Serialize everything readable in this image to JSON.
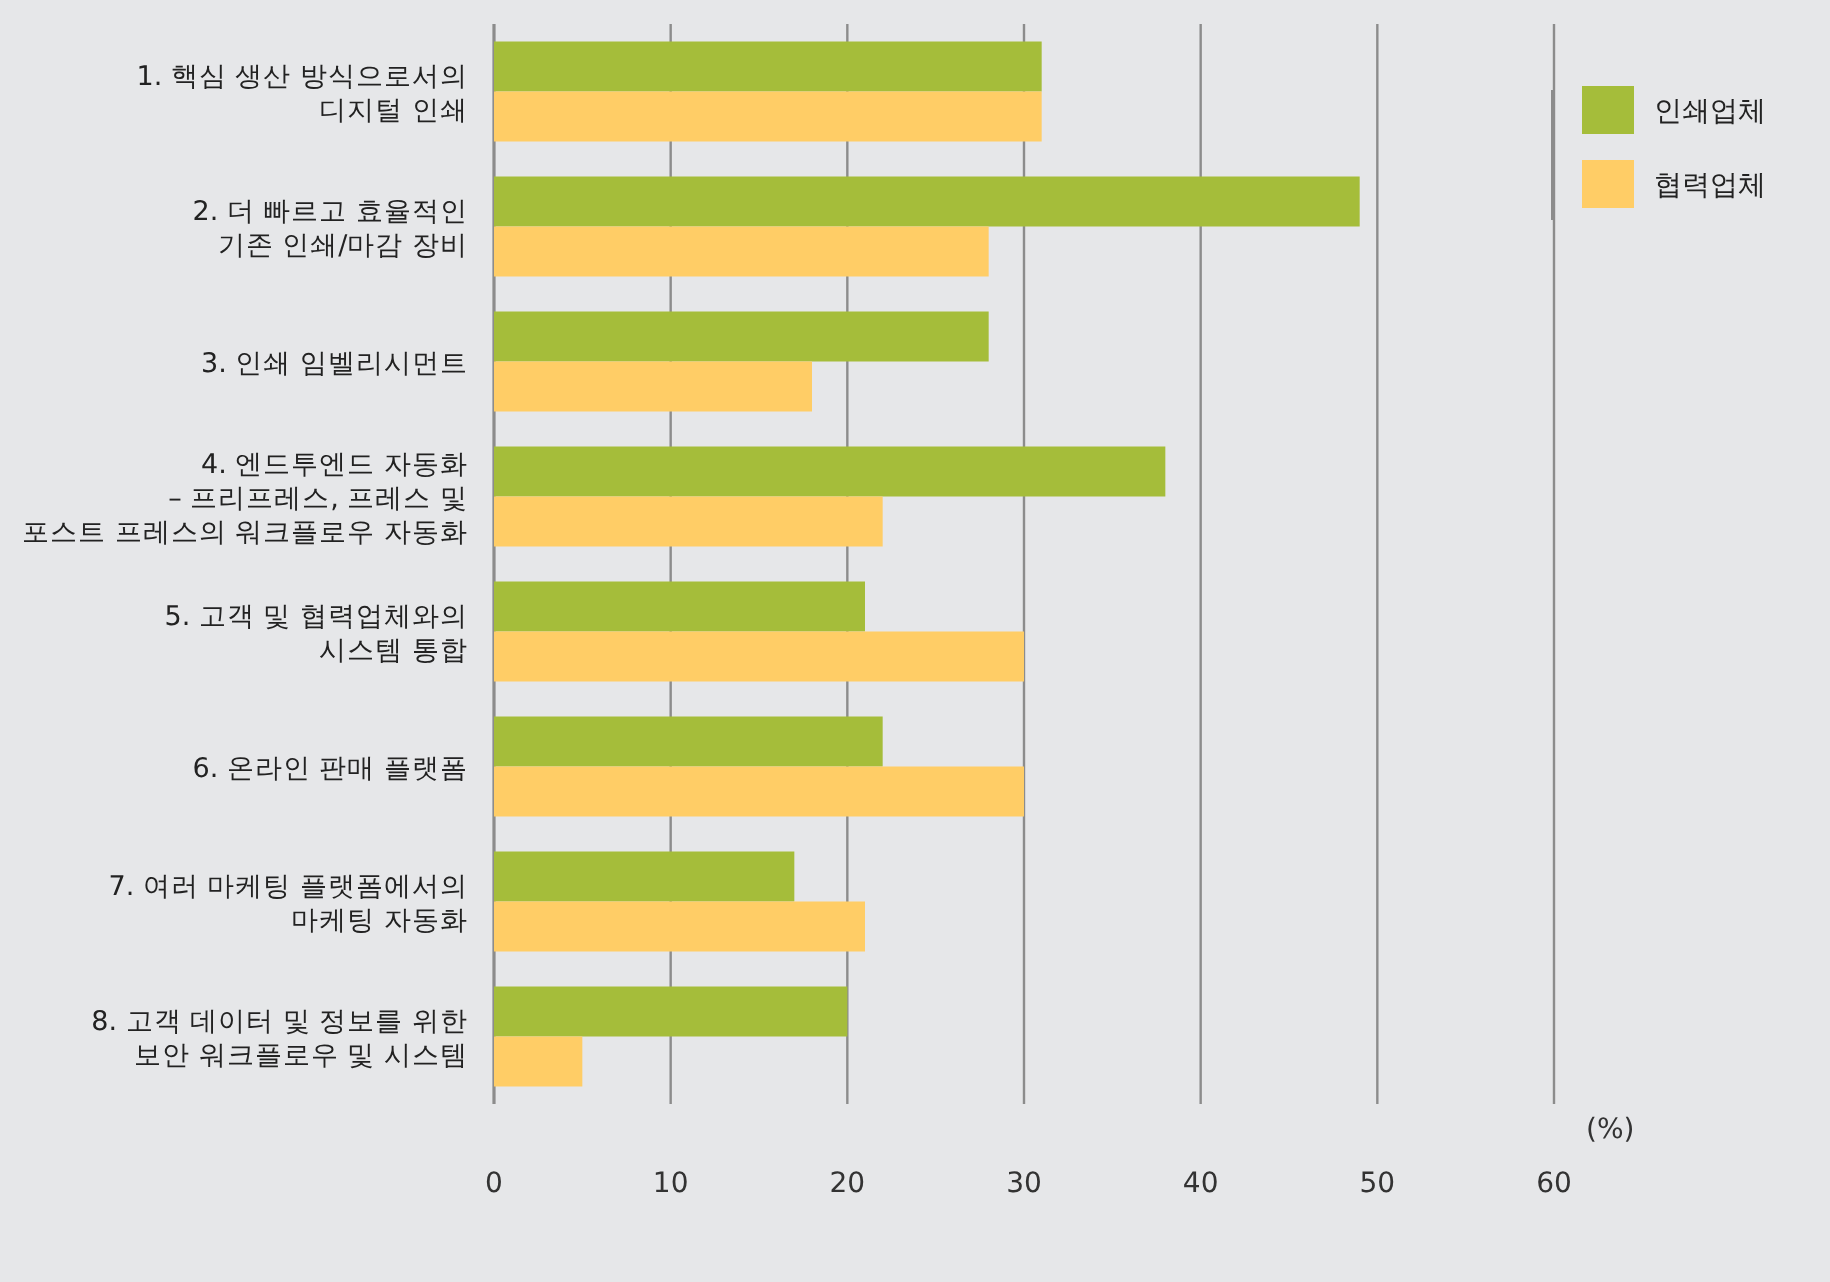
{
  "chart_data": {
    "type": "bar",
    "orientation": "horizontal",
    "categories": [
      "1.  핵심 생산 방식으로서의\n디지털 인쇄",
      "2. 더 빠르고 효율적인\n기존 인쇄/마감 장비",
      "3. 인쇄 임벨리시먼트",
      "4. 엔드투엔드 자동화\n– 프리프레스, 프레스 및\n포스트 프레스의 워크플로우 자동화",
      "5. 고객 및 협력업체와의\n시스템 통합",
      "6. 온라인 판매 플랫폼",
      "7. 여러 마케팅 플랫폼에서의\n마케팅 자동화",
      "8. 고객 데이터 및 정보를 위한\n보안 워크플로우 및 시스템"
    ],
    "series": [
      {
        "name": "인쇄업체",
        "color": "#a5bd3a",
        "values": [
          31,
          49,
          28,
          38,
          21,
          22,
          17,
          20
        ]
      },
      {
        "name": "협력업체",
        "color": "#ffcd66",
        "values": [
          31,
          28,
          18,
          22,
          30,
          30,
          21,
          5
        ]
      }
    ],
    "xlim": [
      0,
      60
    ],
    "xticks": [
      0,
      10,
      20,
      30,
      40,
      50,
      60
    ],
    "xlabel": "(%)",
    "grid": "x",
    "legend": "top right"
  }
}
